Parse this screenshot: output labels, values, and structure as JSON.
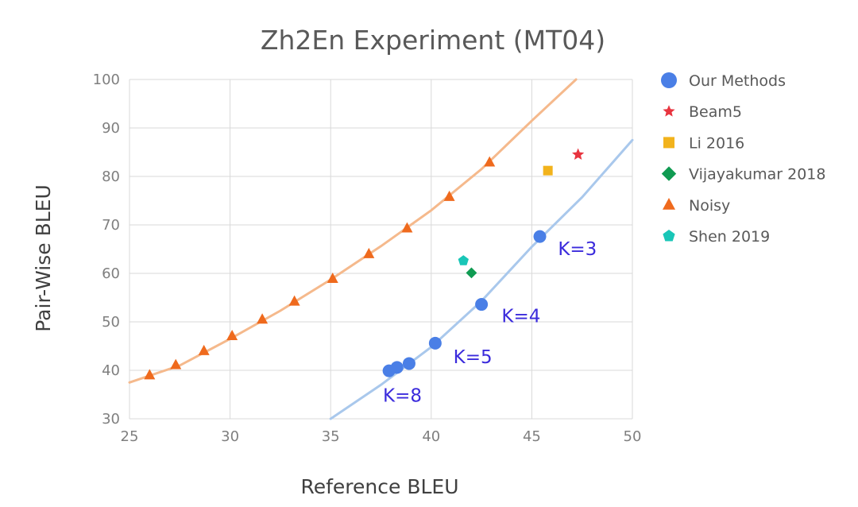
{
  "chart_data": {
    "type": "scatter",
    "title": "Zh2En Experiment (MT04)",
    "xlabel": "Reference BLEU",
    "ylabel": "Pair-Wise BLEU",
    "xlim": [
      25,
      50
    ],
    "ylim": [
      30,
      100
    ],
    "xticks": [
      25,
      30,
      35,
      40,
      45,
      50
    ],
    "yticks": [
      30,
      40,
      50,
      60,
      70,
      80,
      90,
      100
    ],
    "grid": true,
    "legend_position": "right",
    "series": [
      {
        "name": "Our Methods",
        "marker": "circle",
        "color": "#4a7fe6",
        "points": [
          {
            "x": 45.4,
            "y": 67.6
          },
          {
            "x": 42.5,
            "y": 53.6
          },
          {
            "x": 40.2,
            "y": 45.6
          },
          {
            "x": 38.9,
            "y": 41.4
          },
          {
            "x": 38.3,
            "y": 40.6
          },
          {
            "x": 37.9,
            "y": 39.9
          }
        ]
      },
      {
        "name": "Beam5",
        "marker": "star",
        "color": "#e8343f",
        "points": [
          {
            "x": 47.3,
            "y": 84.5
          }
        ]
      },
      {
        "name": "Li 2016",
        "marker": "square",
        "color": "#f2b31c",
        "points": [
          {
            "x": 45.8,
            "y": 81.2
          }
        ]
      },
      {
        "name": "Vijayakumar 2018",
        "marker": "diamond",
        "color": "#109b52",
        "points": [
          {
            "x": 42.0,
            "y": 60.1
          }
        ]
      },
      {
        "name": "Noisy",
        "marker": "triangle",
        "color": "#ef6a1d",
        "points": [
          {
            "x": 26.0,
            "y": 39.0
          },
          {
            "x": 27.3,
            "y": 41.1
          },
          {
            "x": 28.7,
            "y": 44.0
          },
          {
            "x": 30.1,
            "y": 47.1
          },
          {
            "x": 31.6,
            "y": 50.5
          },
          {
            "x": 33.2,
            "y": 54.2
          },
          {
            "x": 35.1,
            "y": 58.9
          },
          {
            "x": 36.9,
            "y": 64.0
          },
          {
            "x": 38.8,
            "y": 69.3
          },
          {
            "x": 40.9,
            "y": 75.8
          },
          {
            "x": 42.9,
            "y": 82.9
          }
        ]
      },
      {
        "name": "Shen 2019",
        "marker": "pentagon",
        "color": "#19c6b7",
        "points": [
          {
            "x": 41.6,
            "y": 62.6
          }
        ]
      }
    ],
    "trendlines": [
      {
        "series": "Noisy",
        "color": "#f5b98c",
        "points": [
          [
            25,
            37.5
          ],
          [
            27.5,
            41.0
          ],
          [
            30,
            46.5
          ],
          [
            32.5,
            52.3
          ],
          [
            35,
            58.7
          ],
          [
            37.5,
            65.6
          ],
          [
            40,
            73.0
          ],
          [
            42.5,
            81.5
          ],
          [
            45,
            91.5
          ],
          [
            47.2,
            100.0
          ]
        ]
      },
      {
        "series": "Our Methods",
        "color": "#a9c8ec",
        "points": [
          [
            35,
            30.0
          ],
          [
            37.5,
            37.0
          ],
          [
            40,
            44.8
          ],
          [
            42.5,
            54.3
          ],
          [
            45,
            65.5
          ],
          [
            47.5,
            75.7
          ],
          [
            50,
            87.5
          ]
        ]
      }
    ],
    "annotations": [
      {
        "text": "K=3",
        "x": 46.3,
        "y": 63.8
      },
      {
        "text": "K=4",
        "x": 43.5,
        "y": 49.9
      },
      {
        "text": "K=5",
        "x": 41.1,
        "y": 41.5
      },
      {
        "text": "K=8",
        "x": 37.6,
        "y": 33.5
      }
    ]
  }
}
